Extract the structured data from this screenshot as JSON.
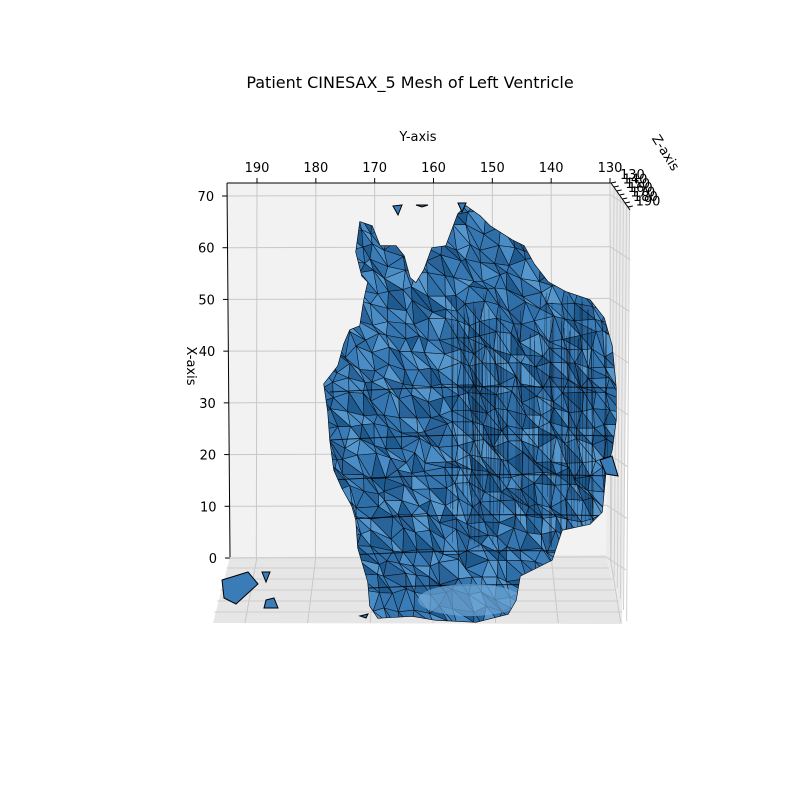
{
  "chart_data": {
    "type": "surface3d",
    "title": "Patient CINESAX_5 Mesh of Left Ventricle",
    "xlabel": "X-axis",
    "ylabel": "Y-axis",
    "zlabel": "Z-axis",
    "x_ticks": [
      "0",
      "10",
      "20",
      "30",
      "40",
      "50",
      "60",
      "70"
    ],
    "y_ticks": [
      "190",
      "180",
      "170",
      "160",
      "150",
      "140",
      "130"
    ],
    "z_ticks": [
      "130",
      "140",
      "150",
      "160",
      "170",
      "180",
      "190"
    ],
    "xlim": [
      -12,
      72
    ],
    "ylim": [
      195,
      130
    ],
    "grid": true,
    "mesh_color": "#3a7cb8",
    "mesh_edge_color": "#000000",
    "pane_color": "#f2f2f2"
  }
}
